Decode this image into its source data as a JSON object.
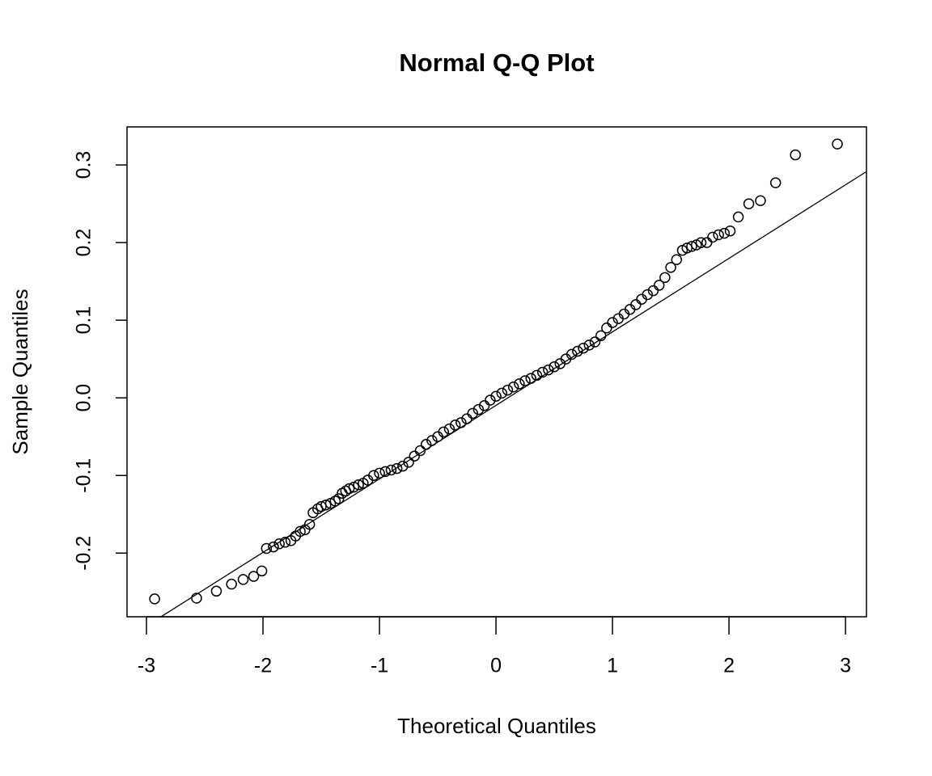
{
  "chart_data": {
    "type": "scatter",
    "title": "Normal Q-Q Plot",
    "x_label": "Theoretical Quantiles",
    "y_label": "Sample Quantiles",
    "xlim": [
      -3.167,
      3.18
    ],
    "ylim": [
      -0.282,
      0.349
    ],
    "xticks": [
      -3,
      -2,
      -1,
      0,
      1,
      2,
      3
    ],
    "yticks": [
      -0.2,
      -0.1,
      {
        "value": 0,
        "label": "0.0"
      },
      0.1,
      0.2,
      0.3
    ],
    "color": "#000000",
    "reference_line": {
      "intercept": -0.0097,
      "slope": 0.0947
    },
    "x": [
      -2.93,
      -2.57,
      -2.4,
      -2.27,
      -2.17,
      -2.08,
      -2.01,
      -1.97,
      -1.91,
      -1.86,
      -1.81,
      -1.76,
      -1.72,
      -1.68,
      -1.64,
      -1.6,
      -1.57,
      -1.53,
      -1.5,
      -1.46,
      -1.42,
      -1.38,
      -1.35,
      -1.32,
      -1.29,
      -1.26,
      -1.22,
      -1.18,
      -1.14,
      -1.1,
      -1.05,
      -1.0,
      -0.95,
      -0.9,
      -0.85,
      -0.8,
      -0.75,
      -0.7,
      -0.65,
      -0.6,
      -0.55,
      -0.5,
      -0.45,
      -0.4,
      -0.35,
      -0.3,
      -0.25,
      -0.2,
      -0.15,
      -0.1,
      -0.05,
      0.0,
      0.05,
      0.1,
      0.15,
      0.2,
      0.25,
      0.3,
      0.35,
      0.4,
      0.45,
      0.5,
      0.55,
      0.6,
      0.65,
      0.7,
      0.75,
      0.8,
      0.85,
      0.9,
      0.95,
      1.0,
      1.05,
      1.1,
      1.15,
      1.2,
      1.25,
      1.3,
      1.35,
      1.4,
      1.45,
      1.5,
      1.55,
      1.6,
      1.64,
      1.68,
      1.72,
      1.76,
      1.81,
      1.86,
      1.91,
      1.96,
      2.01,
      2.08,
      2.17,
      2.27,
      2.4,
      2.57,
      2.93
    ],
    "values": [
      -0.259,
      -0.258,
      -0.249,
      -0.24,
      -0.234,
      -0.23,
      -0.223,
      -0.194,
      -0.192,
      -0.188,
      -0.186,
      -0.184,
      -0.178,
      -0.172,
      -0.17,
      -0.163,
      -0.148,
      -0.143,
      -0.14,
      -0.138,
      -0.136,
      -0.133,
      -0.13,
      -0.123,
      -0.12,
      -0.117,
      -0.115,
      -0.112,
      -0.11,
      -0.106,
      -0.1,
      -0.097,
      -0.095,
      -0.093,
      -0.091,
      -0.088,
      -0.083,
      -0.075,
      -0.068,
      -0.06,
      -0.055,
      -0.05,
      -0.044,
      -0.04,
      -0.035,
      -0.032,
      -0.027,
      -0.02,
      -0.015,
      -0.01,
      -0.003,
      0.002,
      0.006,
      0.01,
      0.014,
      0.018,
      0.022,
      0.025,
      0.029,
      0.033,
      0.036,
      0.04,
      0.044,
      0.05,
      0.056,
      0.06,
      0.064,
      0.068,
      0.072,
      0.08,
      0.09,
      0.097,
      0.102,
      0.108,
      0.114,
      0.12,
      0.127,
      0.133,
      0.138,
      0.145,
      0.155,
      0.168,
      0.178,
      0.19,
      0.193,
      0.195,
      0.197,
      0.2,
      0.2,
      0.207,
      0.21,
      0.212,
      0.215,
      0.233,
      0.25,
      0.254,
      0.277,
      0.313,
      0.327
    ]
  }
}
